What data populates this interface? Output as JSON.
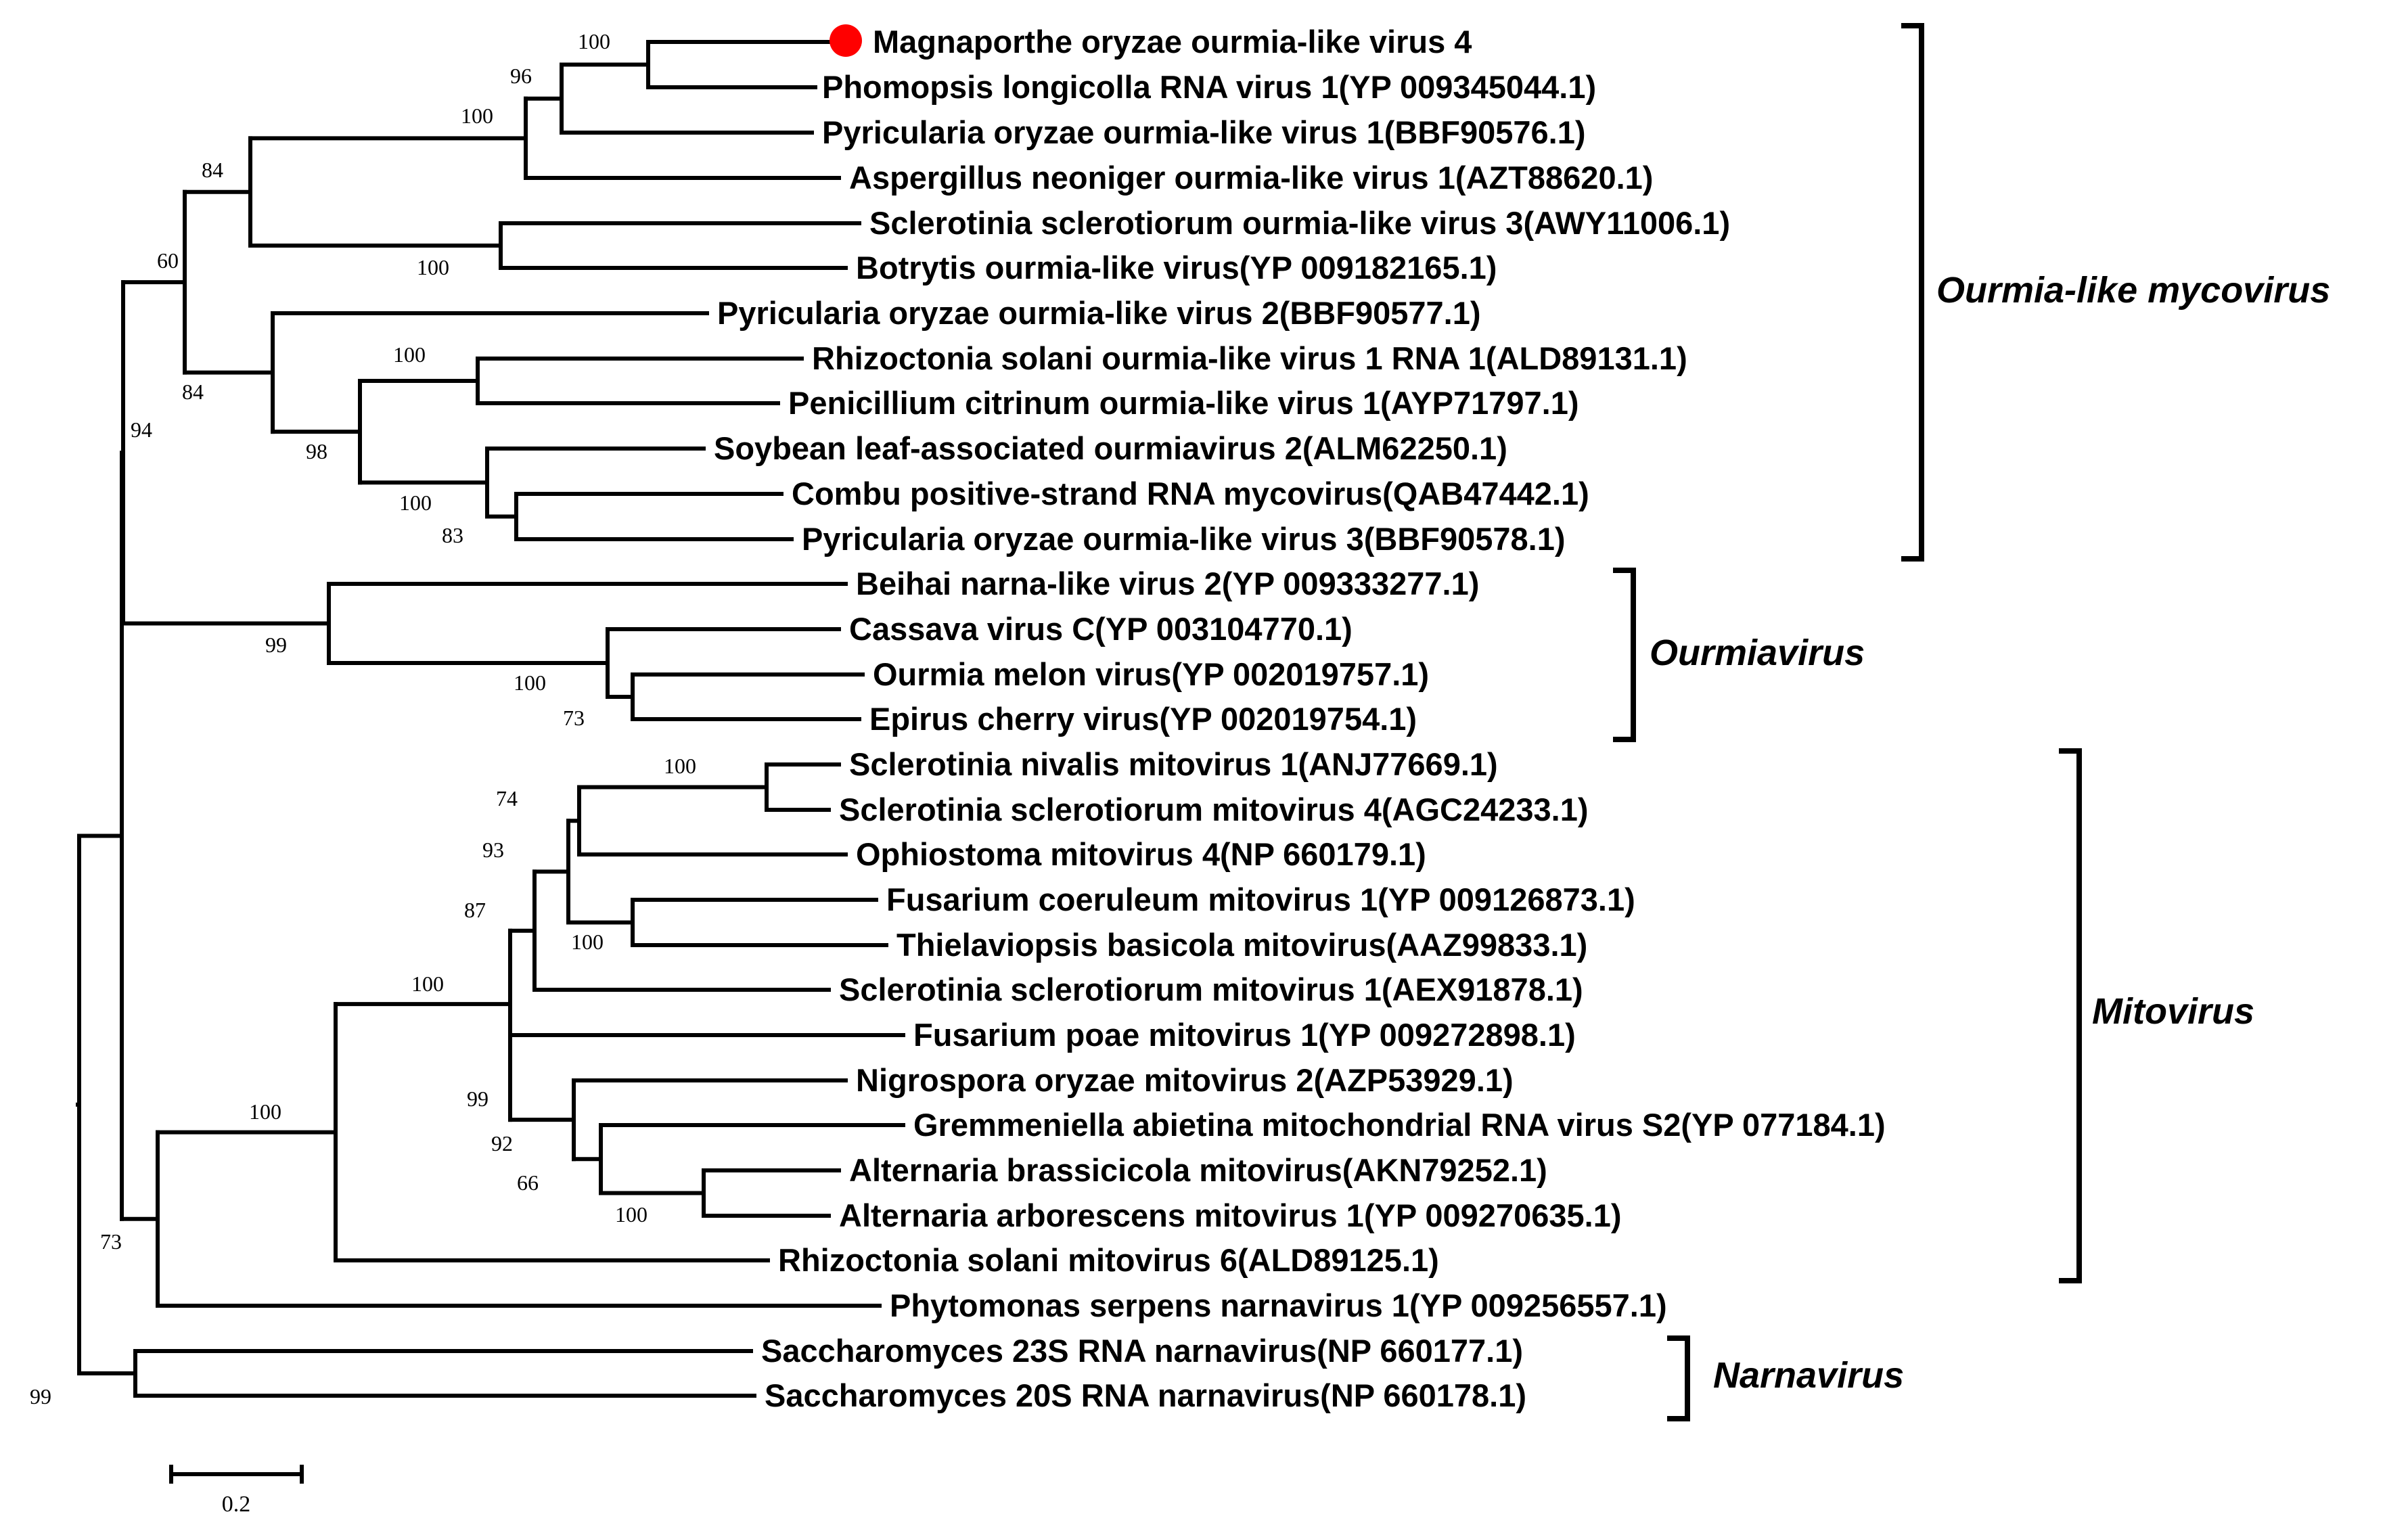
{
  "highlight_color": "#ff0000",
  "leaves": [
    "Magnaporthe oryzae ourmia-like virus 4",
    "Phomopsis longicolla RNA virus 1(YP 009345044.1)",
    "Pyricularia oryzae ourmia-like virus 1(BBF90576.1)",
    "Aspergillus neoniger ourmia-like virus 1(AZT88620.1)",
    "Sclerotinia sclerotiorum ourmia-like virus 3(AWY11006.1)",
    "Botrytis ourmia-like virus(YP 009182165.1)",
    "Pyricularia oryzae ourmia-like virus 2(BBF90577.1)",
    "Rhizoctonia solani ourmia-like virus 1 RNA 1(ALD89131.1)",
    "Penicillium citrinum ourmia-like virus 1(AYP71797.1)",
    "Soybean leaf-associated ourmiavirus 2(ALM62250.1)",
    "Combu positive-strand RNA mycovirus(QAB47442.1)",
    "Pyricularia oryzae ourmia-like virus 3(BBF90578.1)",
    "Beihai narna-like virus 2(YP 009333277.1)",
    "Cassava virus C(YP 003104770.1)",
    "Ourmia melon virus(YP 002019757.1)",
    "Epirus cherry virus(YP 002019754.1)",
    "Sclerotinia nivalis mitovirus 1(ANJ77669.1)",
    "Sclerotinia sclerotiorum mitovirus 4(AGC24233.1)",
    "Ophiostoma mitovirus 4(NP 660179.1)",
    "Fusarium coeruleum mitovirus 1(YP 009126873.1)",
    "Thielaviopsis basicola mitovirus(AAZ99833.1)",
    "Sclerotinia sclerotiorum mitovirus 1(AEX91878.1)",
    "Fusarium poae mitovirus 1(YP 009272898.1)",
    "Nigrospora oryzae mitovirus 2(AZP53929.1)",
    "Gremmeniella abietina mitochondrial RNA virus S2(YP 077184.1)",
    "Alternaria brassicicola mitovirus(AKN79252.1)",
    "Alternaria arborescens mitovirus 1(YP 009270635.1)",
    "Rhizoctonia solani mitovirus 6(ALD89125.1)",
    "Phytomonas serpens narnavirus 1(YP 009256557.1)",
    "Saccharomyces 23S RNA narnavirus(NP 660177.1)",
    "Saccharomyces 20S RNA narnavirus(NP 660178.1)"
  ],
  "bootstrap": [
    "100",
    "96",
    "100",
    "84",
    "100",
    "60",
    "100",
    "84",
    "98",
    "100",
    "83",
    "94",
    "99",
    "100",
    "73",
    "100",
    "74",
    "93",
    "100",
    "87",
    "100",
    "99",
    "92",
    "66",
    "100",
    "100",
    "73",
    "99"
  ],
  "groups": [
    "Ourmia-like mycovirus",
    "Ourmiavirus",
    "Mitovirus",
    "Narnavirus"
  ],
  "scale_bar": "0.2"
}
